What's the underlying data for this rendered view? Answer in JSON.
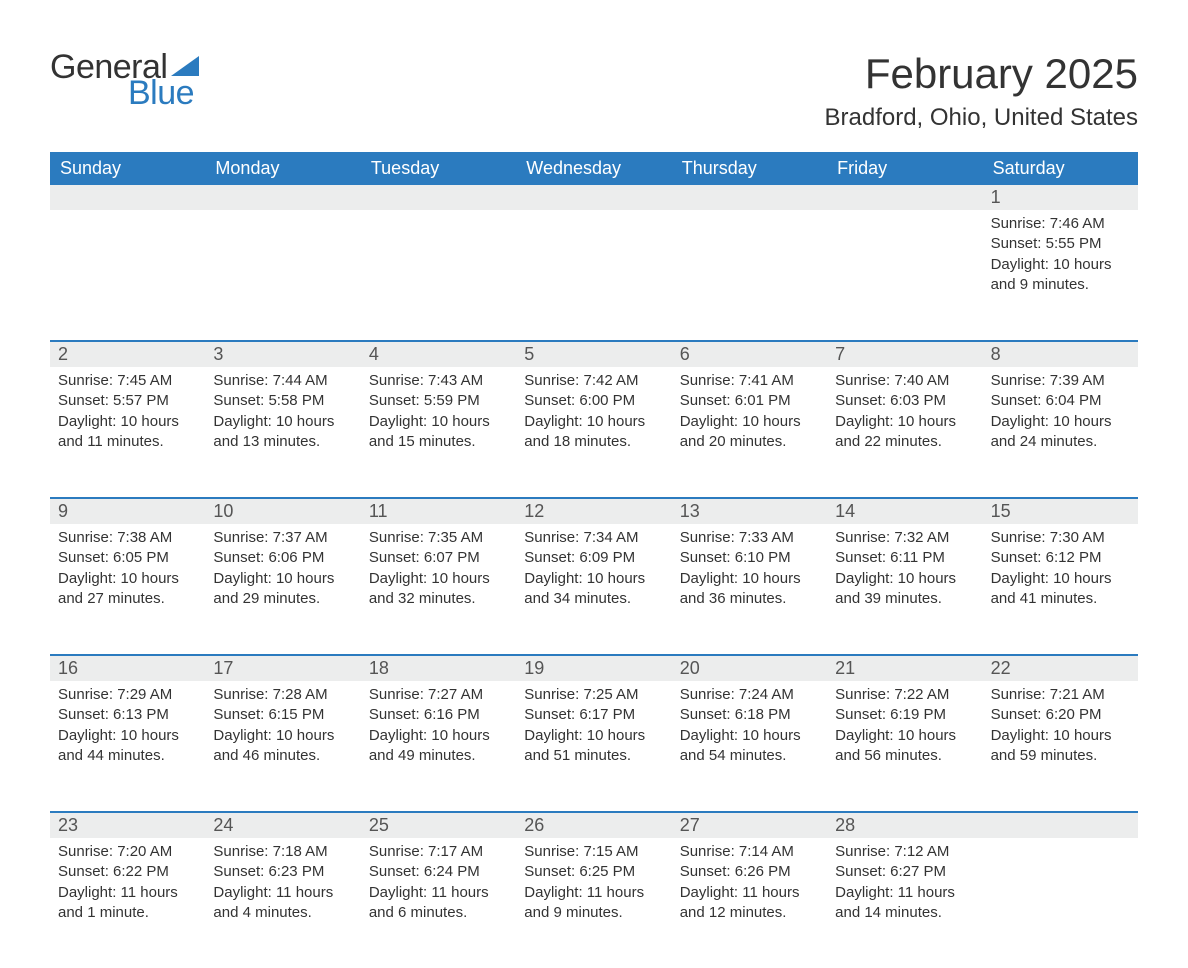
{
  "logo": {
    "text1": "General",
    "text2": "Blue",
    "text_color": "#333333",
    "accent_color": "#2b7bbf"
  },
  "title": "February 2025",
  "location": "Bradford, Ohio, United States",
  "colors": {
    "header_bg": "#2b7bbf",
    "header_text": "#ffffff",
    "daynum_bg": "#eceded",
    "row_divider": "#2b7bbf",
    "background": "#ffffff",
    "body_text": "#333333"
  },
  "weekdays": [
    "Sunday",
    "Monday",
    "Tuesday",
    "Wednesday",
    "Thursday",
    "Friday",
    "Saturday"
  ],
  "weeks": [
    [
      {
        "day": "",
        "sunrise": "",
        "sunset": "",
        "daylight1": "",
        "daylight2": ""
      },
      {
        "day": "",
        "sunrise": "",
        "sunset": "",
        "daylight1": "",
        "daylight2": ""
      },
      {
        "day": "",
        "sunrise": "",
        "sunset": "",
        "daylight1": "",
        "daylight2": ""
      },
      {
        "day": "",
        "sunrise": "",
        "sunset": "",
        "daylight1": "",
        "daylight2": ""
      },
      {
        "day": "",
        "sunrise": "",
        "sunset": "",
        "daylight1": "",
        "daylight2": ""
      },
      {
        "day": "",
        "sunrise": "",
        "sunset": "",
        "daylight1": "",
        "daylight2": ""
      },
      {
        "day": "1",
        "sunrise": "Sunrise: 7:46 AM",
        "sunset": "Sunset: 5:55 PM",
        "daylight1": "Daylight: 10 hours",
        "daylight2": "and 9 minutes."
      }
    ],
    [
      {
        "day": "2",
        "sunrise": "Sunrise: 7:45 AM",
        "sunset": "Sunset: 5:57 PM",
        "daylight1": "Daylight: 10 hours",
        "daylight2": "and 11 minutes."
      },
      {
        "day": "3",
        "sunrise": "Sunrise: 7:44 AM",
        "sunset": "Sunset: 5:58 PM",
        "daylight1": "Daylight: 10 hours",
        "daylight2": "and 13 minutes."
      },
      {
        "day": "4",
        "sunrise": "Sunrise: 7:43 AM",
        "sunset": "Sunset: 5:59 PM",
        "daylight1": "Daylight: 10 hours",
        "daylight2": "and 15 minutes."
      },
      {
        "day": "5",
        "sunrise": "Sunrise: 7:42 AM",
        "sunset": "Sunset: 6:00 PM",
        "daylight1": "Daylight: 10 hours",
        "daylight2": "and 18 minutes."
      },
      {
        "day": "6",
        "sunrise": "Sunrise: 7:41 AM",
        "sunset": "Sunset: 6:01 PM",
        "daylight1": "Daylight: 10 hours",
        "daylight2": "and 20 minutes."
      },
      {
        "day": "7",
        "sunrise": "Sunrise: 7:40 AM",
        "sunset": "Sunset: 6:03 PM",
        "daylight1": "Daylight: 10 hours",
        "daylight2": "and 22 minutes."
      },
      {
        "day": "8",
        "sunrise": "Sunrise: 7:39 AM",
        "sunset": "Sunset: 6:04 PM",
        "daylight1": "Daylight: 10 hours",
        "daylight2": "and 24 minutes."
      }
    ],
    [
      {
        "day": "9",
        "sunrise": "Sunrise: 7:38 AM",
        "sunset": "Sunset: 6:05 PM",
        "daylight1": "Daylight: 10 hours",
        "daylight2": "and 27 minutes."
      },
      {
        "day": "10",
        "sunrise": "Sunrise: 7:37 AM",
        "sunset": "Sunset: 6:06 PM",
        "daylight1": "Daylight: 10 hours",
        "daylight2": "and 29 minutes."
      },
      {
        "day": "11",
        "sunrise": "Sunrise: 7:35 AM",
        "sunset": "Sunset: 6:07 PM",
        "daylight1": "Daylight: 10 hours",
        "daylight2": "and 32 minutes."
      },
      {
        "day": "12",
        "sunrise": "Sunrise: 7:34 AM",
        "sunset": "Sunset: 6:09 PM",
        "daylight1": "Daylight: 10 hours",
        "daylight2": "and 34 minutes."
      },
      {
        "day": "13",
        "sunrise": "Sunrise: 7:33 AM",
        "sunset": "Sunset: 6:10 PM",
        "daylight1": "Daylight: 10 hours",
        "daylight2": "and 36 minutes."
      },
      {
        "day": "14",
        "sunrise": "Sunrise: 7:32 AM",
        "sunset": "Sunset: 6:11 PM",
        "daylight1": "Daylight: 10 hours",
        "daylight2": "and 39 minutes."
      },
      {
        "day": "15",
        "sunrise": "Sunrise: 7:30 AM",
        "sunset": "Sunset: 6:12 PM",
        "daylight1": "Daylight: 10 hours",
        "daylight2": "and 41 minutes."
      }
    ],
    [
      {
        "day": "16",
        "sunrise": "Sunrise: 7:29 AM",
        "sunset": "Sunset: 6:13 PM",
        "daylight1": "Daylight: 10 hours",
        "daylight2": "and 44 minutes."
      },
      {
        "day": "17",
        "sunrise": "Sunrise: 7:28 AM",
        "sunset": "Sunset: 6:15 PM",
        "daylight1": "Daylight: 10 hours",
        "daylight2": "and 46 minutes."
      },
      {
        "day": "18",
        "sunrise": "Sunrise: 7:27 AM",
        "sunset": "Sunset: 6:16 PM",
        "daylight1": "Daylight: 10 hours",
        "daylight2": "and 49 minutes."
      },
      {
        "day": "19",
        "sunrise": "Sunrise: 7:25 AM",
        "sunset": "Sunset: 6:17 PM",
        "daylight1": "Daylight: 10 hours",
        "daylight2": "and 51 minutes."
      },
      {
        "day": "20",
        "sunrise": "Sunrise: 7:24 AM",
        "sunset": "Sunset: 6:18 PM",
        "daylight1": "Daylight: 10 hours",
        "daylight2": "and 54 minutes."
      },
      {
        "day": "21",
        "sunrise": "Sunrise: 7:22 AM",
        "sunset": "Sunset: 6:19 PM",
        "daylight1": "Daylight: 10 hours",
        "daylight2": "and 56 minutes."
      },
      {
        "day": "22",
        "sunrise": "Sunrise: 7:21 AM",
        "sunset": "Sunset: 6:20 PM",
        "daylight1": "Daylight: 10 hours",
        "daylight2": "and 59 minutes."
      }
    ],
    [
      {
        "day": "23",
        "sunrise": "Sunrise: 7:20 AM",
        "sunset": "Sunset: 6:22 PM",
        "daylight1": "Daylight: 11 hours",
        "daylight2": "and 1 minute."
      },
      {
        "day": "24",
        "sunrise": "Sunrise: 7:18 AM",
        "sunset": "Sunset: 6:23 PM",
        "daylight1": "Daylight: 11 hours",
        "daylight2": "and 4 minutes."
      },
      {
        "day": "25",
        "sunrise": "Sunrise: 7:17 AM",
        "sunset": "Sunset: 6:24 PM",
        "daylight1": "Daylight: 11 hours",
        "daylight2": "and 6 minutes."
      },
      {
        "day": "26",
        "sunrise": "Sunrise: 7:15 AM",
        "sunset": "Sunset: 6:25 PM",
        "daylight1": "Daylight: 11 hours",
        "daylight2": "and 9 minutes."
      },
      {
        "day": "27",
        "sunrise": "Sunrise: 7:14 AM",
        "sunset": "Sunset: 6:26 PM",
        "daylight1": "Daylight: 11 hours",
        "daylight2": "and 12 minutes."
      },
      {
        "day": "28",
        "sunrise": "Sunrise: 7:12 AM",
        "sunset": "Sunset: 6:27 PM",
        "daylight1": "Daylight: 11 hours",
        "daylight2": "and 14 minutes."
      },
      {
        "day": "",
        "sunrise": "",
        "sunset": "",
        "daylight1": "",
        "daylight2": ""
      }
    ]
  ]
}
